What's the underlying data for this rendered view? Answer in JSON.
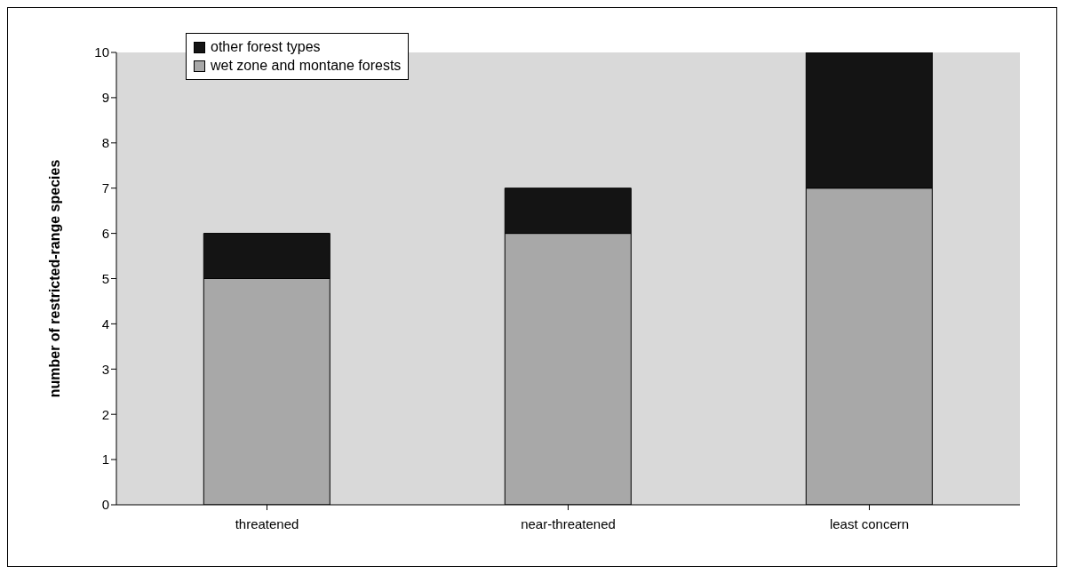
{
  "chart_data": {
    "type": "bar",
    "stacked": true,
    "ylabel": "number of restricted-range species",
    "categories": [
      "threatened",
      "near-threatened",
      "least concern"
    ],
    "series": [
      {
        "name": "wet zone and montane forests",
        "color": "#a8a8a8",
        "values": [
          5,
          6,
          7
        ]
      },
      {
        "name": "other forest types",
        "color": "#141414",
        "values": [
          1,
          1,
          3
        ]
      }
    ],
    "ylim": [
      0,
      10
    ],
    "yticks": [
      0,
      1,
      2,
      3,
      4,
      5,
      6,
      7,
      8,
      9,
      10
    ],
    "legend": "top left"
  }
}
